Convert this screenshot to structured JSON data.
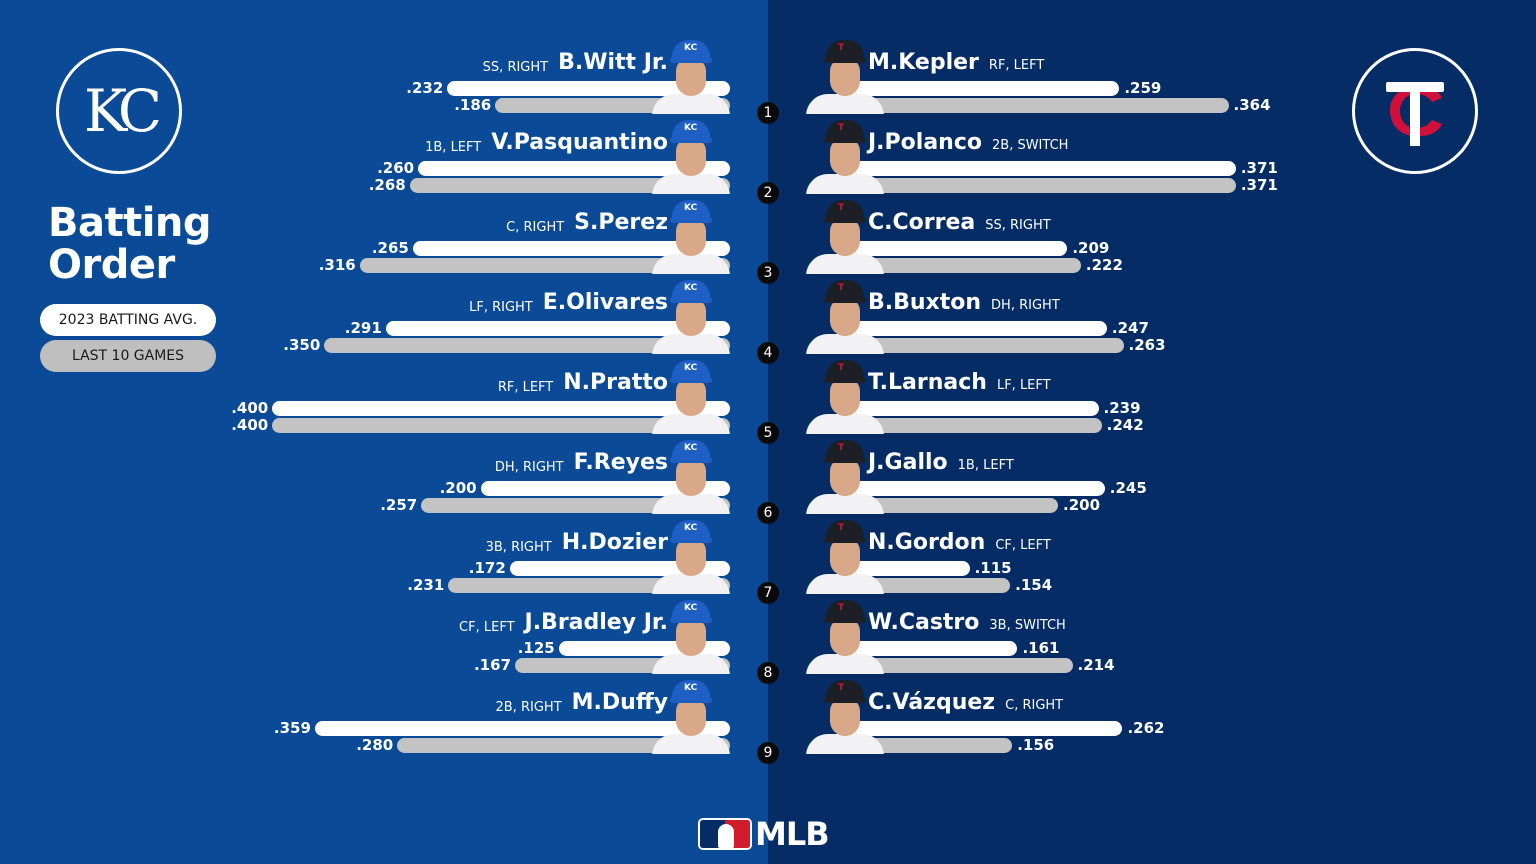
{
  "header": {
    "title_line1": "Batting",
    "title_line2": "Order",
    "away_logo_text": "KC",
    "home_logo_text": "TC"
  },
  "legend": {
    "season": "2023 BATTING AVG.",
    "last10": "LAST 10 GAMES",
    "season_color": "#ffffff",
    "last10_color": "#c3c3c3"
  },
  "colors": {
    "kc_background": "#0a4a96",
    "min_background": "#062c66",
    "min_red": "#d0103a"
  },
  "footer": {
    "brand": "MLB"
  },
  "chart_data": {
    "type": "bar",
    "title": "Batting Order",
    "orientation": "horizontal (mirrored)",
    "legend": [
      "2023 BATTING AVG.",
      "LAST 10 GAMES"
    ],
    "legend_position": "left",
    "grid": false,
    "teams": [
      {
        "team": "Kansas City Royals",
        "players": [
          {
            "order": "1",
            "name": "B.Witt Jr.",
            "pos": "SS, RIGHT",
            "season": ".232",
            "last10": ".186"
          },
          {
            "order": "2",
            "name": "V.Pasquantino",
            "pos": "1B, LEFT",
            "season": ".260",
            "last10": ".268"
          },
          {
            "order": "3",
            "name": "S.Perez",
            "pos": "C, RIGHT",
            "season": ".265",
            "last10": ".316"
          },
          {
            "order": "4",
            "name": "E.Olivares",
            "pos": "LF, RIGHT",
            "season": ".291",
            "last10": ".350"
          },
          {
            "order": "5",
            "name": "N.Pratto",
            "pos": "RF, LEFT",
            "season": ".400",
            "last10": ".400"
          },
          {
            "order": "6",
            "name": "F.Reyes",
            "pos": "DH, RIGHT",
            "season": ".200",
            "last10": ".257"
          },
          {
            "order": "7",
            "name": "H.Dozier",
            "pos": "3B, RIGHT",
            "season": ".172",
            "last10": ".231"
          },
          {
            "order": "8",
            "name": "J.Bradley Jr.",
            "pos": "CF, LEFT",
            "season": ".125",
            "last10": ".167"
          },
          {
            "order": "9",
            "name": "M.Duffy",
            "pos": "2B, RIGHT",
            "season": ".359",
            "last10": ".280"
          }
        ]
      },
      {
        "team": "Minnesota Twins",
        "players": [
          {
            "order": "1",
            "name": "M.Kepler",
            "pos": "RF, LEFT",
            "season": ".259",
            "last10": ".364"
          },
          {
            "order": "2",
            "name": "J.Polanco",
            "pos": "2B, SWITCH",
            "season": ".371",
            "last10": ".371"
          },
          {
            "order": "3",
            "name": "C.Correa",
            "pos": "SS, RIGHT",
            "season": ".209",
            "last10": ".222"
          },
          {
            "order": "4",
            "name": "B.Buxton",
            "pos": "DH, RIGHT",
            "season": ".247",
            "last10": ".263"
          },
          {
            "order": "5",
            "name": "T.Larnach",
            "pos": "LF, LEFT",
            "season": ".239",
            "last10": ".242"
          },
          {
            "order": "6",
            "name": "J.Gallo",
            "pos": "1B, LEFT",
            "season": ".245",
            "last10": ".200"
          },
          {
            "order": "7",
            "name": "N.Gordon",
            "pos": "CF, LEFT",
            "season": ".115",
            "last10": ".154"
          },
          {
            "order": "8",
            "name": "W.Castro",
            "pos": "3B, SWITCH",
            "season": ".161",
            "last10": ".214"
          },
          {
            "order": "9",
            "name": "C.Vázquez",
            "pos": "C, RIGHT",
            "season": ".262",
            "last10": ".156"
          }
        ]
      }
    ]
  }
}
